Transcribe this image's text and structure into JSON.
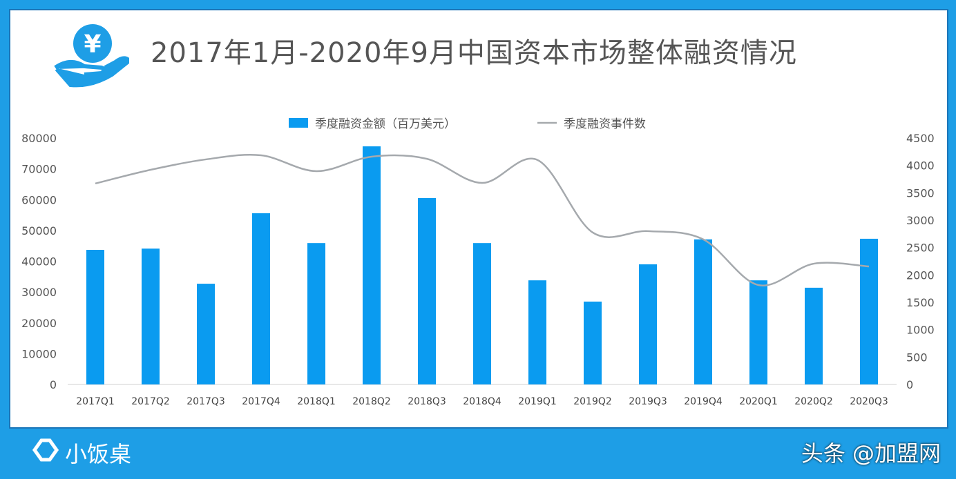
{
  "title": "2017年1月-2020年9月中国资本市场整体融资情况",
  "brand": "小饭桌",
  "watermark": "头条 @加盟网",
  "colors": {
    "bar": "#0a9bf0",
    "line": "#a5a9ad",
    "frame": "#1e9ee6"
  },
  "icons": {
    "logo": "yen-hand-icon",
    "brand": "brand-logo-icon"
  },
  "chart_data": {
    "type": "bar+line",
    "title": "2017年1月-2020年9月中国资本市场整体融资情况",
    "categories": [
      "2017Q1",
      "2017Q2",
      "2017Q3",
      "2017Q4",
      "2018Q1",
      "2018Q2",
      "2018Q3",
      "2018Q4",
      "2019Q1",
      "2019Q2",
      "2019Q3",
      "2019Q4",
      "2020Q1",
      "2020Q2",
      "2020Q3"
    ],
    "series": [
      {
        "name": "季度融资金额（百万美元）",
        "type": "bar",
        "axis": "left",
        "values": [
          43700,
          44100,
          32700,
          55600,
          45900,
          77300,
          60500,
          45900,
          33800,
          26900,
          39000,
          47100,
          33800,
          31400,
          47300
        ]
      },
      {
        "name": "季度融资事件数",
        "type": "line",
        "axis": "right",
        "values": [
          3670,
          3920,
          4110,
          4185,
          3895,
          4160,
          4120,
          3680,
          4100,
          2775,
          2800,
          2650,
          1815,
          2205,
          2155
        ]
      }
    ],
    "left_axis": {
      "ylim": [
        0,
        80000
      ],
      "ticks": [
        "0",
        "10000",
        "20000",
        "30000",
        "40000",
        "50000",
        "60000",
        "70000",
        "80000"
      ]
    },
    "right_axis": {
      "ylim": [
        0,
        4500
      ],
      "ticks": [
        "0",
        "500",
        "1000",
        "1500",
        "2000",
        "2500",
        "3000",
        "3500",
        "4000",
        "4500"
      ]
    },
    "legend": "top-center",
    "grid": false
  }
}
